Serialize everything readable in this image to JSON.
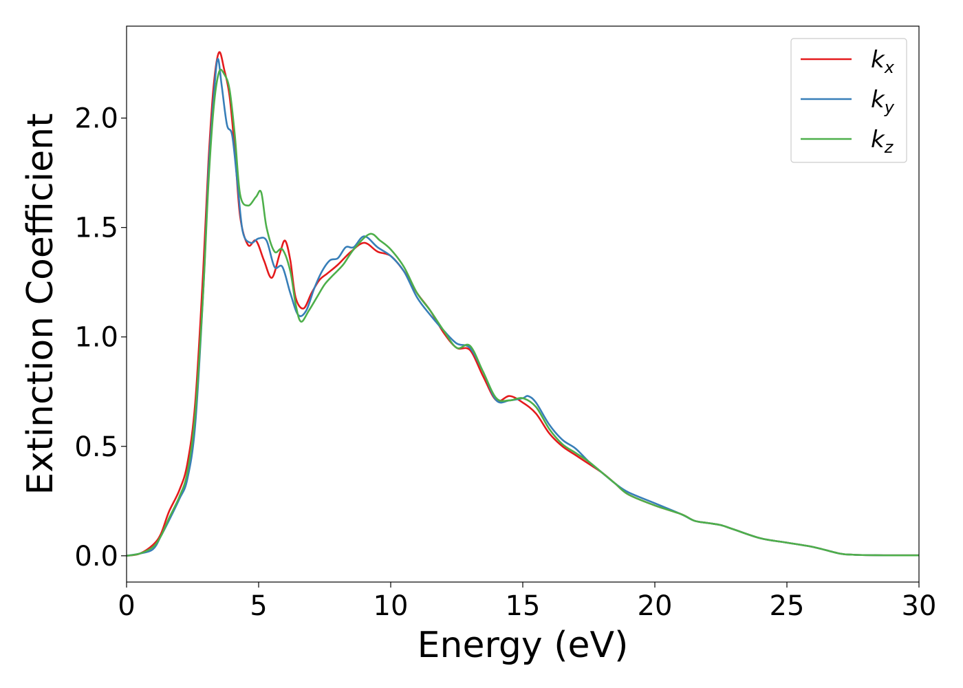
{
  "chart_data": {
    "type": "line",
    "xlabel": "Energy (eV)",
    "ylabel": "Extinction Coefficient",
    "xlim": [
      0,
      30
    ],
    "ylim": [
      -0.12,
      2.42
    ],
    "xticks": [
      0,
      5,
      10,
      15,
      20,
      25,
      30
    ],
    "xtick_labels": [
      "0",
      "5",
      "10",
      "15",
      "20",
      "25",
      "30"
    ],
    "yticks": [
      0.0,
      0.5,
      1.0,
      1.5,
      2.0
    ],
    "ytick_labels": [
      "0.0",
      "0.5",
      "1.0",
      "1.5",
      "2.0"
    ],
    "grid": false,
    "legend_position": "top-right",
    "series": [
      {
        "name": "k_x",
        "label_main": "k",
        "label_sub": "x",
        "color": "#e41a1c",
        "x": [
          0,
          0.5,
          1,
          1.3,
          1.6,
          2,
          2.3,
          2.6,
          2.9,
          3.1,
          3.3,
          3.5,
          3.7,
          3.9,
          4.1,
          4.3,
          4.6,
          4.9,
          5.2,
          5.5,
          5.8,
          6,
          6.2,
          6.4,
          6.7,
          7,
          7.3,
          7.6,
          8,
          8.5,
          9,
          9.5,
          10,
          10.5,
          11,
          11.5,
          12,
          12.5,
          13,
          13.5,
          14,
          14.5,
          15,
          15.5,
          16,
          16.5,
          17,
          17.5,
          18,
          18.5,
          19,
          20,
          21,
          21.5,
          22,
          22.5,
          23,
          24,
          25,
          26,
          27,
          27.5,
          28,
          29,
          30
        ],
        "y": [
          0,
          0.01,
          0.05,
          0.1,
          0.2,
          0.3,
          0.42,
          0.7,
          1.3,
          1.8,
          2.15,
          2.3,
          2.22,
          2.1,
          1.85,
          1.55,
          1.42,
          1.44,
          1.35,
          1.27,
          1.38,
          1.44,
          1.35,
          1.18,
          1.13,
          1.2,
          1.26,
          1.29,
          1.33,
          1.39,
          1.43,
          1.39,
          1.37,
          1.3,
          1.2,
          1.12,
          1.02,
          0.95,
          0.94,
          0.82,
          0.71,
          0.73,
          0.7,
          0.65,
          0.56,
          0.5,
          0.46,
          0.42,
          0.38,
          0.33,
          0.28,
          0.23,
          0.19,
          0.16,
          0.15,
          0.14,
          0.12,
          0.08,
          0.06,
          0.04,
          0.01,
          0.005,
          0.003,
          0.002,
          0.002
        ]
      },
      {
        "name": "k_y",
        "label_main": "k",
        "label_sub": "y",
        "color": "#377eb8",
        "x": [
          0,
          0.5,
          1,
          1.3,
          1.6,
          2,
          2.3,
          2.6,
          2.9,
          3.1,
          3.3,
          3.45,
          3.6,
          3.8,
          4,
          4.2,
          4.4,
          4.7,
          5,
          5.3,
          5.6,
          5.9,
          6.2,
          6.5,
          6.8,
          7.1,
          7.4,
          7.7,
          8,
          8.3,
          8.6,
          9,
          9.5,
          10,
          10.5,
          11,
          11.5,
          12,
          12.5,
          13,
          13.5,
          14,
          14.5,
          15,
          15.2,
          15.5,
          16,
          16.5,
          17,
          17.5,
          18,
          18.5,
          19,
          20,
          21,
          21.5,
          22,
          22.5,
          23,
          24,
          25,
          26,
          27,
          27.5,
          28,
          29,
          30
        ],
        "y": [
          0,
          0.01,
          0.03,
          0.09,
          0.16,
          0.26,
          0.35,
          0.6,
          1.2,
          1.75,
          2.1,
          2.27,
          2.15,
          1.97,
          1.92,
          1.7,
          1.48,
          1.43,
          1.45,
          1.44,
          1.32,
          1.32,
          1.2,
          1.1,
          1.12,
          1.22,
          1.3,
          1.35,
          1.36,
          1.41,
          1.41,
          1.46,
          1.41,
          1.37,
          1.3,
          1.18,
          1.1,
          1.03,
          0.97,
          0.95,
          0.84,
          0.71,
          0.71,
          0.72,
          0.73,
          0.7,
          0.6,
          0.53,
          0.49,
          0.43,
          0.38,
          0.33,
          0.29,
          0.24,
          0.19,
          0.16,
          0.15,
          0.14,
          0.12,
          0.08,
          0.06,
          0.04,
          0.01,
          0.005,
          0.003,
          0.002,
          0.002
        ]
      },
      {
        "name": "k_z",
        "label_main": "k",
        "label_sub": "z",
        "color": "#4daf4a",
        "x": [
          0,
          0.5,
          1,
          1.3,
          1.6,
          2,
          2.3,
          2.6,
          2.9,
          3.1,
          3.3,
          3.5,
          3.7,
          3.9,
          4.1,
          4.3,
          4.6,
          4.9,
          5.1,
          5.3,
          5.6,
          5.9,
          6.2,
          6.4,
          6.6,
          6.9,
          7.2,
          7.5,
          7.8,
          8.2,
          8.6,
          9.2,
          9.6,
          10,
          10.5,
          11,
          11.5,
          12,
          12.5,
          13,
          13.5,
          14,
          14.5,
          15,
          15.5,
          16,
          16.5,
          17,
          17.5,
          18,
          18.5,
          19,
          20,
          21,
          21.5,
          22,
          22.5,
          23,
          24,
          25,
          26,
          27,
          27.5,
          28,
          29,
          30
        ],
        "y": [
          0,
          0.01,
          0.04,
          0.09,
          0.17,
          0.27,
          0.38,
          0.65,
          1.2,
          1.7,
          2.05,
          2.21,
          2.2,
          2.13,
          1.92,
          1.65,
          1.6,
          1.64,
          1.66,
          1.5,
          1.39,
          1.4,
          1.3,
          1.15,
          1.07,
          1.12,
          1.18,
          1.24,
          1.28,
          1.33,
          1.4,
          1.47,
          1.44,
          1.4,
          1.32,
          1.2,
          1.12,
          1.03,
          0.95,
          0.96,
          0.84,
          0.72,
          0.71,
          0.72,
          0.68,
          0.58,
          0.51,
          0.47,
          0.43,
          0.38,
          0.33,
          0.28,
          0.23,
          0.19,
          0.16,
          0.15,
          0.14,
          0.12,
          0.08,
          0.06,
          0.04,
          0.01,
          0.005,
          0.003,
          0.002,
          0.002
        ]
      }
    ]
  }
}
